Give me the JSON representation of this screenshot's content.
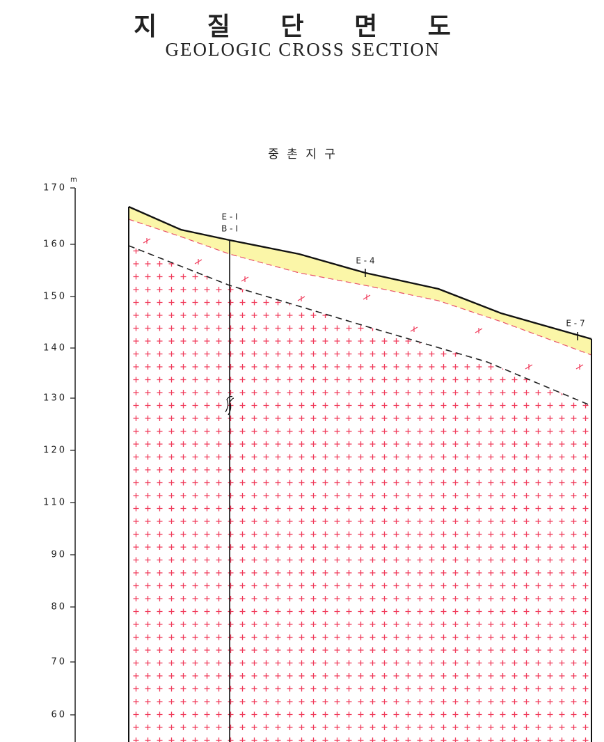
{
  "header": {
    "title": "지 질 단 면 도",
    "subtitle": "GEOLOGIC CROSS SECTION"
  },
  "section": {
    "name": "중 촌 지 구"
  },
  "axis": {
    "unit": "m",
    "labels": [
      "170",
      "160",
      "150",
      "140",
      "130",
      "120",
      "110",
      "90",
      "80",
      "70",
      "60"
    ]
  },
  "boreholes": [
    {
      "labels": [
        "E - I",
        "B - I"
      ]
    },
    {
      "labels": [
        "E - 4"
      ]
    },
    {
      "labels": [
        "E - 7"
      ]
    }
  ]
}
